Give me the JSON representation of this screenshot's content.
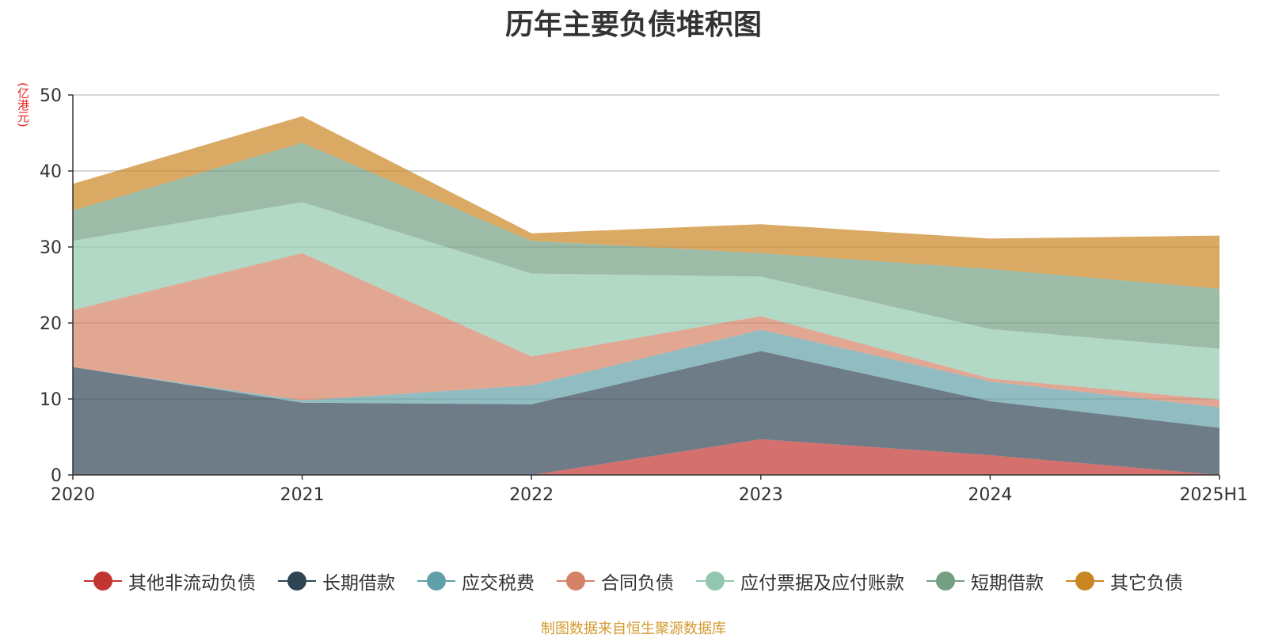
{
  "chart_data": {
    "type": "area",
    "stacked": true,
    "title": "历年主要负债堆积图",
    "unit_label": "(亿港元)",
    "categories": [
      "2020",
      "2021",
      "2022",
      "2023",
      "2024",
      "2025H1"
    ],
    "ylim": [
      0,
      50
    ],
    "yticks": [
      0,
      10,
      20,
      30,
      40,
      50
    ],
    "grid": true,
    "legend_position": "bottom",
    "series": [
      {
        "name": "其他非流动负债",
        "color": "#c23531",
        "values": [
          0,
          0,
          0,
          4.7,
          2.6,
          0
        ]
      },
      {
        "name": "长期借款",
        "color": "#2f4554",
        "values": [
          14.2,
          9.5,
          9.3,
          11.6,
          7.1,
          6.2
        ]
      },
      {
        "name": "应交税费",
        "color": "#61a0a8",
        "values": [
          0,
          0.3,
          2.5,
          2.8,
          2.6,
          2.7
        ]
      },
      {
        "name": "合同负债",
        "color": "#d48265",
        "values": [
          7.5,
          19.4,
          3.8,
          1.8,
          0.4,
          1.0
        ]
      },
      {
        "name": "应付票据及应付账款",
        "color": "#91c7ae",
        "values": [
          9.1,
          6.7,
          10.9,
          5.2,
          6.5,
          6.7
        ]
      },
      {
        "name": "短期借款",
        "color": "#749f83",
        "values": [
          4.0,
          7.8,
          4.3,
          3.1,
          7.9,
          7.9
        ]
      },
      {
        "name": "其它负债",
        "color": "#ca8622",
        "values": [
          3.5,
          3.5,
          1.0,
          3.8,
          4.0,
          7.0
        ]
      }
    ]
  },
  "source_note": "制图数据来自恒生聚源数据库"
}
